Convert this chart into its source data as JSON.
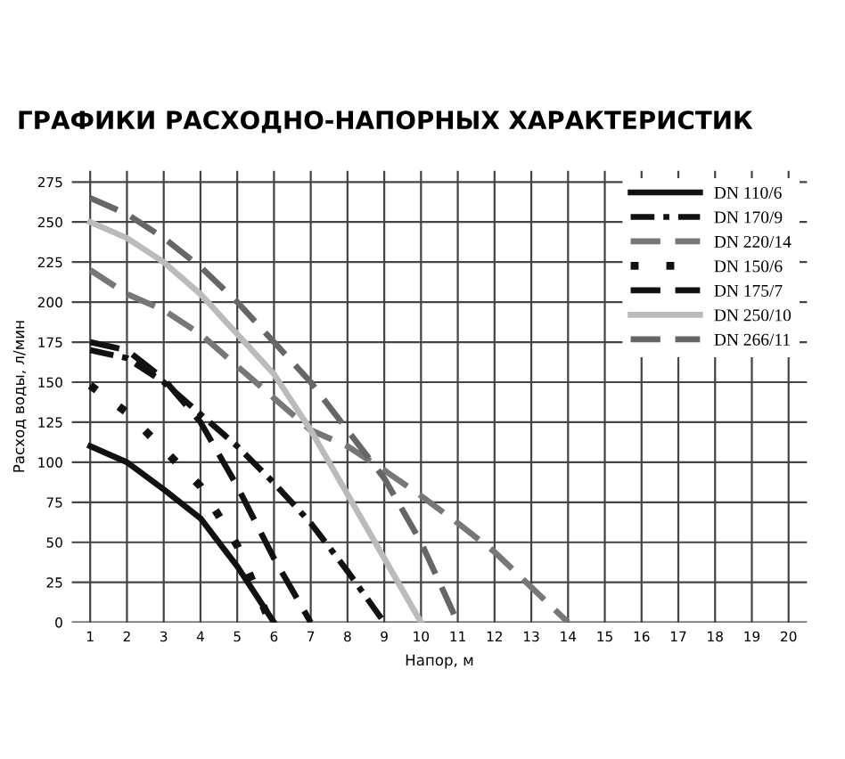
{
  "chart_data": {
    "type": "line",
    "title": "ГРАФИКИ РАСХОДНО-НАПОРНЫХ ХАРАКТЕРИСТИК",
    "xlabel": "Напор, м",
    "ylabel": "Расход воды, л/мин",
    "xlim": [
      0.5,
      20.5
    ],
    "xticks": [
      1,
      2,
      3,
      4,
      5,
      6,
      7,
      8,
      9,
      10,
      11,
      12,
      13,
      14,
      15,
      16,
      17,
      18,
      19,
      20
    ],
    "ylim": [
      0,
      282
    ],
    "yticks": [
      0,
      25,
      50,
      75,
      100,
      125,
      150,
      175,
      200,
      225,
      250,
      275
    ],
    "grid": true,
    "legend": "top right",
    "series": [
      {
        "name": "DN 110/6",
        "color": "#111111",
        "line_style": "solid",
        "x": [
          1,
          2,
          3,
          4,
          5,
          6
        ],
        "values": [
          110,
          100,
          83,
          65,
          35,
          0
        ]
      },
      {
        "name": "DN 170/9",
        "color": "#111111",
        "line_style": "dashdot",
        "x": [
          1,
          2,
          3,
          4,
          5,
          6,
          7,
          8,
          9
        ],
        "values": [
          170,
          165,
          150,
          130,
          110,
          87,
          62,
          32,
          0
        ]
      },
      {
        "name": "DN 220/14",
        "color": "#777777",
        "line_style": "dashed",
        "x": [
          1,
          2,
          3,
          4,
          5,
          6,
          7,
          8,
          9,
          10,
          11,
          12,
          13,
          14
        ],
        "values": [
          220,
          205,
          195,
          180,
          160,
          140,
          120,
          110,
          95,
          79,
          62,
          44,
          22,
          0
        ]
      },
      {
        "name": "DN 150/6",
        "color": "#111111",
        "line_style": "dotted",
        "x": [
          1,
          2,
          3,
          4,
          5,
          5.9
        ],
        "values": [
          148,
          131,
          108,
          85,
          48,
          0
        ]
      },
      {
        "name": "DN 175/7",
        "color": "#111111",
        "line_style": "dashed",
        "x": [
          1,
          2,
          3,
          4,
          5,
          6,
          7
        ],
        "values": [
          175,
          170,
          152,
          125,
          85,
          40,
          0
        ]
      },
      {
        "name": "DN 250/10",
        "color": "#bbbbbb",
        "line_style": "solid",
        "x": [
          1,
          2,
          3,
          4,
          5,
          6,
          7,
          8,
          9,
          10
        ],
        "values": [
          250,
          240,
          225,
          205,
          180,
          155,
          120,
          80,
          40,
          0
        ]
      },
      {
        "name": "DN 266/11",
        "color": "#666666",
        "line_style": "dashed",
        "x": [
          1,
          2,
          3,
          4,
          5,
          6,
          7,
          8,
          9,
          10,
          11
        ],
        "values": [
          265,
          255,
          240,
          222,
          200,
          175,
          150,
          120,
          90,
          50,
          0
        ]
      }
    ]
  }
}
